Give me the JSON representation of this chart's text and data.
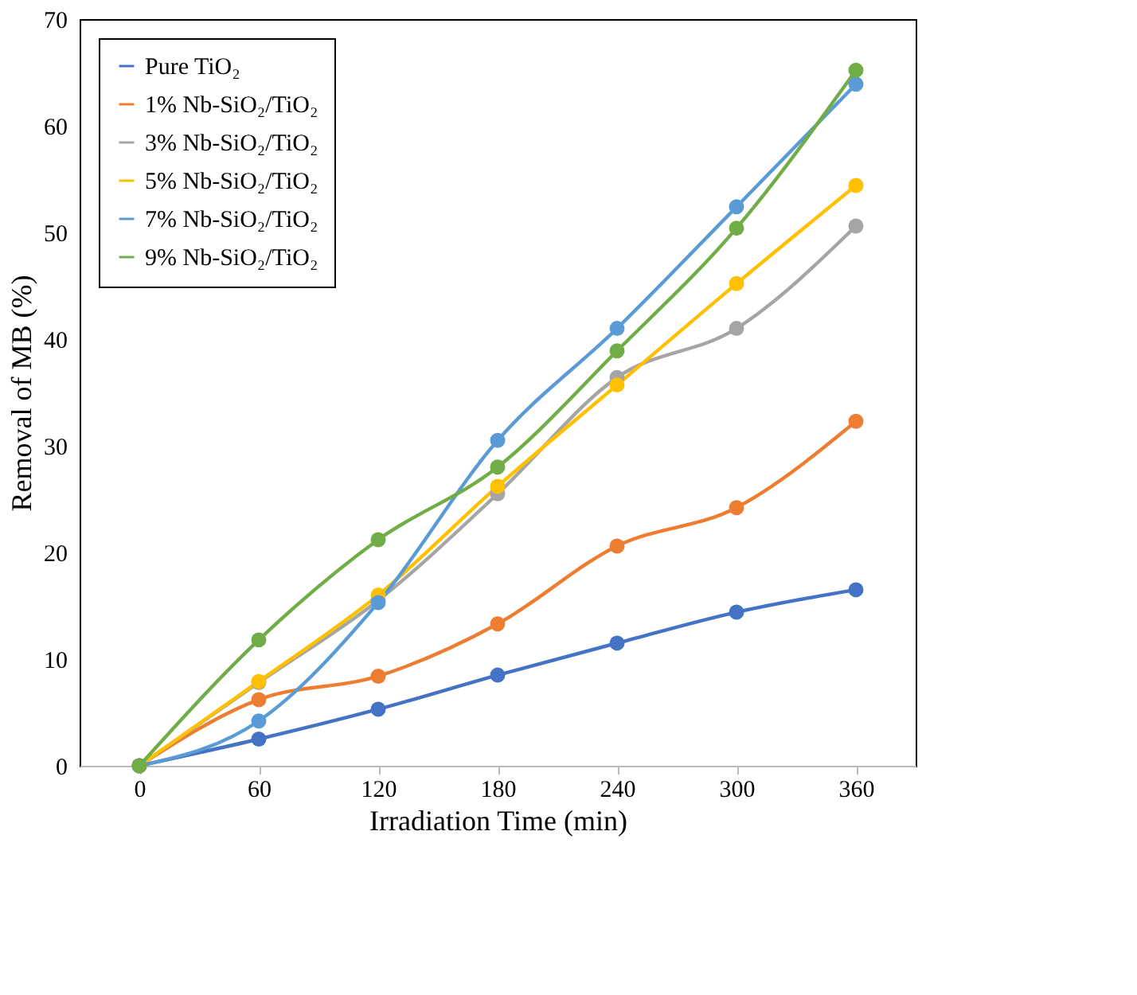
{
  "chart_data": {
    "type": "line",
    "xlabel": "Irradiation Time (min)",
    "ylabel": "Removal of MB (%)",
    "categories": [
      "0",
      "60",
      "120",
      "180",
      "240",
      "300",
      "360"
    ],
    "ylim": [
      0,
      70
    ],
    "yticks": [
      0,
      10,
      20,
      30,
      40,
      50,
      60,
      70
    ],
    "grid": false,
    "legend": "top left",
    "marker": "circle",
    "line_style": "solid",
    "series": [
      {
        "name": "Pure TiO₂",
        "color": "#4472c4",
        "values": [
          0,
          2.5,
          5.3,
          8.5,
          11.5,
          14.4,
          16.5
        ]
      },
      {
        "name": "1% Nb-SiO₂/TiO₂",
        "color": "#ed7d31",
        "values": [
          0,
          6.2,
          8.4,
          13.3,
          20.6,
          24.2,
          32.3
        ]
      },
      {
        "name": "3% Nb-SiO₂/TiO₂",
        "color": "#a5a5a5",
        "values": [
          0,
          7.8,
          15.5,
          25.5,
          36.4,
          41.0,
          50.6
        ]
      },
      {
        "name": "5% Nb-SiO₂/TiO₂",
        "color": "#ffc000",
        "values": [
          0,
          7.9,
          16.0,
          26.2,
          35.7,
          45.2,
          54.4
        ]
      },
      {
        "name": "7% Nb-SiO₂/TiO₂",
        "color": "#5b9bd5",
        "values": [
          0,
          4.2,
          15.3,
          30.5,
          41.0,
          52.4,
          63.9
        ]
      },
      {
        "name": "9% Nb-SiO₂/TiO₂",
        "color": "#70ad47",
        "values": [
          0,
          11.8,
          21.2,
          28.0,
          38.9,
          50.4,
          65.2
        ]
      }
    ]
  }
}
